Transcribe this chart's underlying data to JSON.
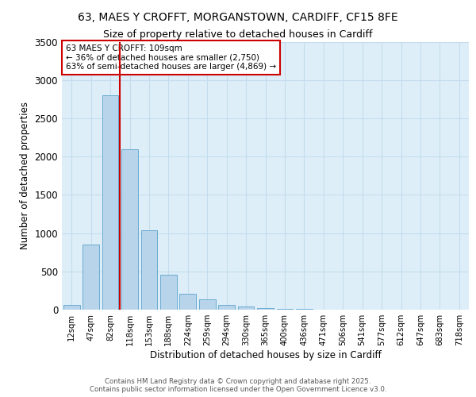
{
  "title_line1": "63, MAES Y CROFFT, MORGANSTOWN, CARDIFF, CF15 8FE",
  "title_line2": "Size of property relative to detached houses in Cardiff",
  "xlabel": "Distribution of detached houses by size in Cardiff",
  "ylabel": "Number of detached properties",
  "bar_labels": [
    "12sqm",
    "47sqm",
    "82sqm",
    "118sqm",
    "153sqm",
    "188sqm",
    "224sqm",
    "259sqm",
    "294sqm",
    "330sqm",
    "365sqm",
    "400sqm",
    "436sqm",
    "471sqm",
    "506sqm",
    "541sqm",
    "577sqm",
    "612sqm",
    "647sqm",
    "683sqm",
    "718sqm"
  ],
  "bar_values": [
    60,
    850,
    2800,
    2100,
    1040,
    460,
    210,
    140,
    65,
    40,
    18,
    12,
    8,
    5,
    3,
    3,
    2,
    2,
    1,
    1,
    1
  ],
  "bar_color": "#b8d4ea",
  "bar_edgecolor": "#6aabd2",
  "bg_color": "#ddeef8",
  "grid_color": "#c5dced",
  "vline_color": "#cc0000",
  "annotation_text": "63 MAES Y CROFFT: 109sqm\n← 36% of detached houses are smaller (2,750)\n63% of semi-detached houses are larger (4,869) →",
  "annotation_box_color": "#ffffff",
  "annotation_box_edgecolor": "#cc0000",
  "footer_line1": "Contains HM Land Registry data © Crown copyright and database right 2025.",
  "footer_line2": "Contains public sector information licensed under the Open Government Licence v3.0.",
  "ylim": [
    0,
    3500
  ],
  "yticks": [
    0,
    500,
    1000,
    1500,
    2000,
    2500,
    3000,
    3500
  ]
}
